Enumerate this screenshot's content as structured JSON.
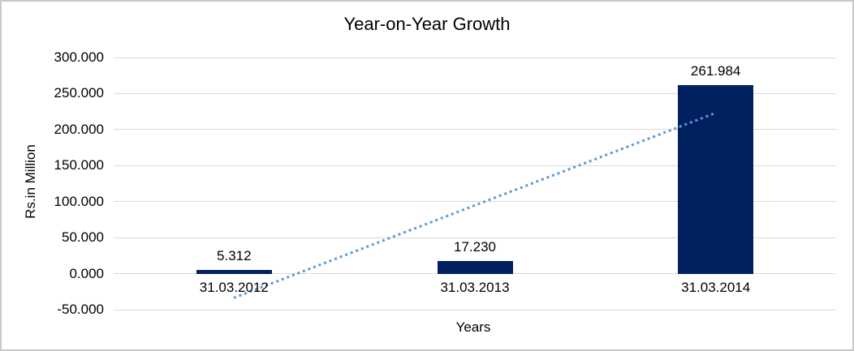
{
  "window": {
    "background": "#ffffff",
    "border_color": "#c8c8c8"
  },
  "chart_data": {
    "type": "bar",
    "title": "Year-on-Year Growth",
    "xlabel": "Years",
    "ylabel": "Rs.in Million",
    "categories": [
      "31.03.2012",
      "31.03.2013",
      "31.03.2014"
    ],
    "values": [
      5.312,
      17.23,
      261.984
    ],
    "data_labels": [
      "5.312",
      "17.230",
      "261.984"
    ],
    "ylim": [
      -50,
      300
    ],
    "ytick_step": 50,
    "y_ticks": [
      "300.000",
      "250.000",
      "200.000",
      "150.000",
      "100.000",
      "50.000",
      "0.000",
      "-50.000"
    ],
    "grid": true,
    "legend": "none",
    "bar_color": "#002060",
    "gridline_color": "#d9d9d9",
    "text_color": "#000000",
    "trendline": {
      "type": "linear",
      "style": "dotted",
      "color": "#5b9bd5",
      "start_value": -33.5,
      "end_value": 223.2
    }
  }
}
